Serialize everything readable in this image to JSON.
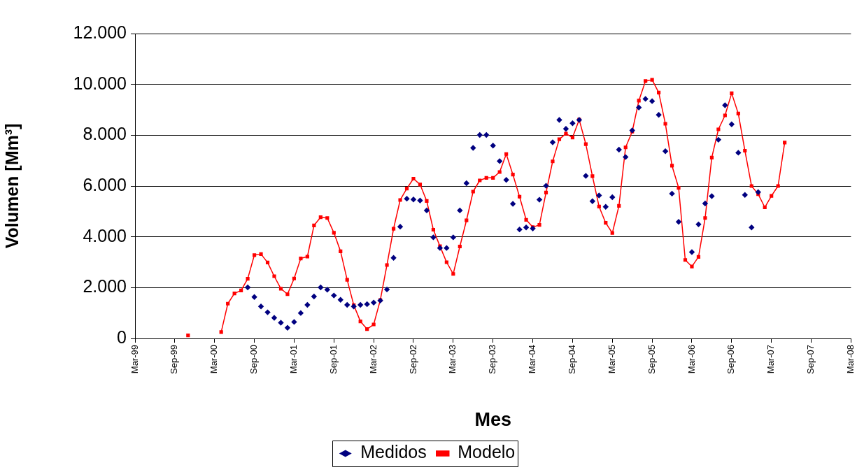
{
  "chart_data": {
    "type": "line",
    "xlabel": "Mes",
    "ylabel": "Volumen [Mm³]",
    "x": [
      "1999-11",
      "1999-12",
      "2000-01",
      "2000-02",
      "2000-03",
      "2000-04",
      "2000-05",
      "2000-06",
      "2000-07",
      "2000-08",
      "2000-09",
      "2000-10",
      "2000-11",
      "2000-12",
      "2001-01",
      "2001-02",
      "2001-03",
      "2001-04",
      "2001-05",
      "2001-06",
      "2001-07",
      "2001-08",
      "2001-09",
      "2001-10",
      "2001-11",
      "2001-12",
      "2002-01",
      "2002-02",
      "2002-03",
      "2002-04",
      "2002-05",
      "2002-06",
      "2002-07",
      "2002-08",
      "2002-09",
      "2002-10",
      "2002-11",
      "2002-12",
      "2003-01",
      "2003-02",
      "2003-03",
      "2003-04",
      "2003-05",
      "2003-06",
      "2003-07",
      "2003-08",
      "2003-09",
      "2003-10",
      "2003-11",
      "2003-12",
      "2004-01",
      "2004-02",
      "2004-03",
      "2004-04",
      "2004-05",
      "2004-06",
      "2004-07",
      "2004-08",
      "2004-09",
      "2004-10",
      "2004-11",
      "2004-12",
      "2005-01",
      "2005-02",
      "2005-03",
      "2005-04",
      "2005-05",
      "2005-06",
      "2005-07",
      "2005-08",
      "2005-09",
      "2005-10",
      "2005-11",
      "2005-12",
      "2006-01",
      "2006-02",
      "2006-03",
      "2006-04",
      "2006-05",
      "2006-06",
      "2006-07",
      "2006-08",
      "2006-09",
      "2006-10",
      "2006-11",
      "2006-12",
      "2007-01",
      "2007-02",
      "2007-03",
      "2007-04",
      "2007-05"
    ],
    "series": [
      {
        "name": "Medidos",
        "type": "scatter",
        "marker": "diamond",
        "color": "#000080",
        "values": [
          null,
          null,
          null,
          null,
          null,
          null,
          null,
          null,
          null,
          2010,
          1630,
          1260,
          1030,
          810,
          620,
          420,
          650,
          1000,
          1320,
          1650,
          2010,
          1920,
          1690,
          1520,
          1320,
          1260,
          1320,
          1350,
          1410,
          1490,
          1930,
          3170,
          4400,
          5500,
          5470,
          5430,
          5040,
          3980,
          3560,
          3560,
          3980,
          5040,
          6110,
          7500,
          8010,
          8010,
          7590,
          6980,
          6240,
          5300,
          4290,
          4370,
          4330,
          5460,
          6010,
          7720,
          8600,
          8250,
          8470,
          8600,
          6400,
          5400,
          5630,
          5180,
          5560,
          7430,
          7140,
          8190,
          9090,
          9430,
          9340,
          8800,
          7370,
          5700,
          4590,
          null,
          3400,
          4490,
          5310,
          5600,
          7820,
          9180,
          8430,
          7310,
          5650,
          4370,
          5760,
          null,
          null,
          null,
          null
        ]
      },
      {
        "name": "Modelo",
        "type": "line",
        "marker": "square",
        "color": "#ff0000",
        "values": [
          120,
          null,
          null,
          null,
          null,
          250,
          1370,
          1770,
          1890,
          2350,
          3280,
          3320,
          2990,
          2450,
          1960,
          1740,
          2360,
          3150,
          3220,
          4450,
          4770,
          4740,
          4160,
          3430,
          2310,
          1310,
          670,
          370,
          550,
          1510,
          2890,
          4320,
          5450,
          5900,
          6290,
          6060,
          5410,
          4280,
          3630,
          3000,
          2540,
          3620,
          4650,
          5780,
          6220,
          6320,
          6320,
          6550,
          7260,
          6450,
          5580,
          4670,
          4380,
          4470,
          5740,
          6970,
          7840,
          8060,
          7910,
          8610,
          7650,
          6390,
          5190,
          4550,
          4150,
          5220,
          7520,
          8140,
          9360,
          10130,
          10180,
          9680,
          8450,
          6800,
          5930,
          3090,
          2830,
          3210,
          4740,
          7120,
          8230,
          8780,
          9650,
          8850,
          7390,
          6000,
          5680,
          5160,
          5610,
          6000,
          7710
        ]
      }
    ],
    "xlim": [
      "1999-03",
      "2008-03"
    ],
    "xticks": [
      {
        "value": "1999-03",
        "label": "Mar-99"
      },
      {
        "value": "1999-09",
        "label": "Sep-99"
      },
      {
        "value": "2000-03",
        "label": "Mar-00"
      },
      {
        "value": "2000-09",
        "label": "Sep-00"
      },
      {
        "value": "2001-03",
        "label": "Mar-01"
      },
      {
        "value": "2001-09",
        "label": "Sep-01"
      },
      {
        "value": "2002-03",
        "label": "Mar-02"
      },
      {
        "value": "2002-09",
        "label": "Sep-02"
      },
      {
        "value": "2003-03",
        "label": "Mar-03"
      },
      {
        "value": "2003-09",
        "label": "Sep-03"
      },
      {
        "value": "2004-03",
        "label": "Mar-04"
      },
      {
        "value": "2004-09",
        "label": "Sep-04"
      },
      {
        "value": "2005-03",
        "label": "Mar-05"
      },
      {
        "value": "2005-09",
        "label": "Sep-05"
      },
      {
        "value": "2006-03",
        "label": "Mar-06"
      },
      {
        "value": "2006-09",
        "label": "Sep-06"
      },
      {
        "value": "2007-03",
        "label": "Mar-07"
      },
      {
        "value": "2007-09",
        "label": "Sep-07"
      },
      {
        "value": "2008-03",
        "label": "Mar-08"
      }
    ],
    "ylim": [
      0,
      12000
    ],
    "yticks": [
      0,
      {
        "value": 2000,
        "label": "2.000"
      },
      {
        "value": 4000,
        "label": "4.000"
      },
      {
        "value": 6000,
        "label": "6.000"
      },
      {
        "value": 8000,
        "label": "8.000"
      },
      {
        "value": 10000,
        "label": "10.000"
      },
      {
        "value": 12000,
        "label": "12.000"
      }
    ],
    "grid": "y",
    "legend": "bottom"
  }
}
